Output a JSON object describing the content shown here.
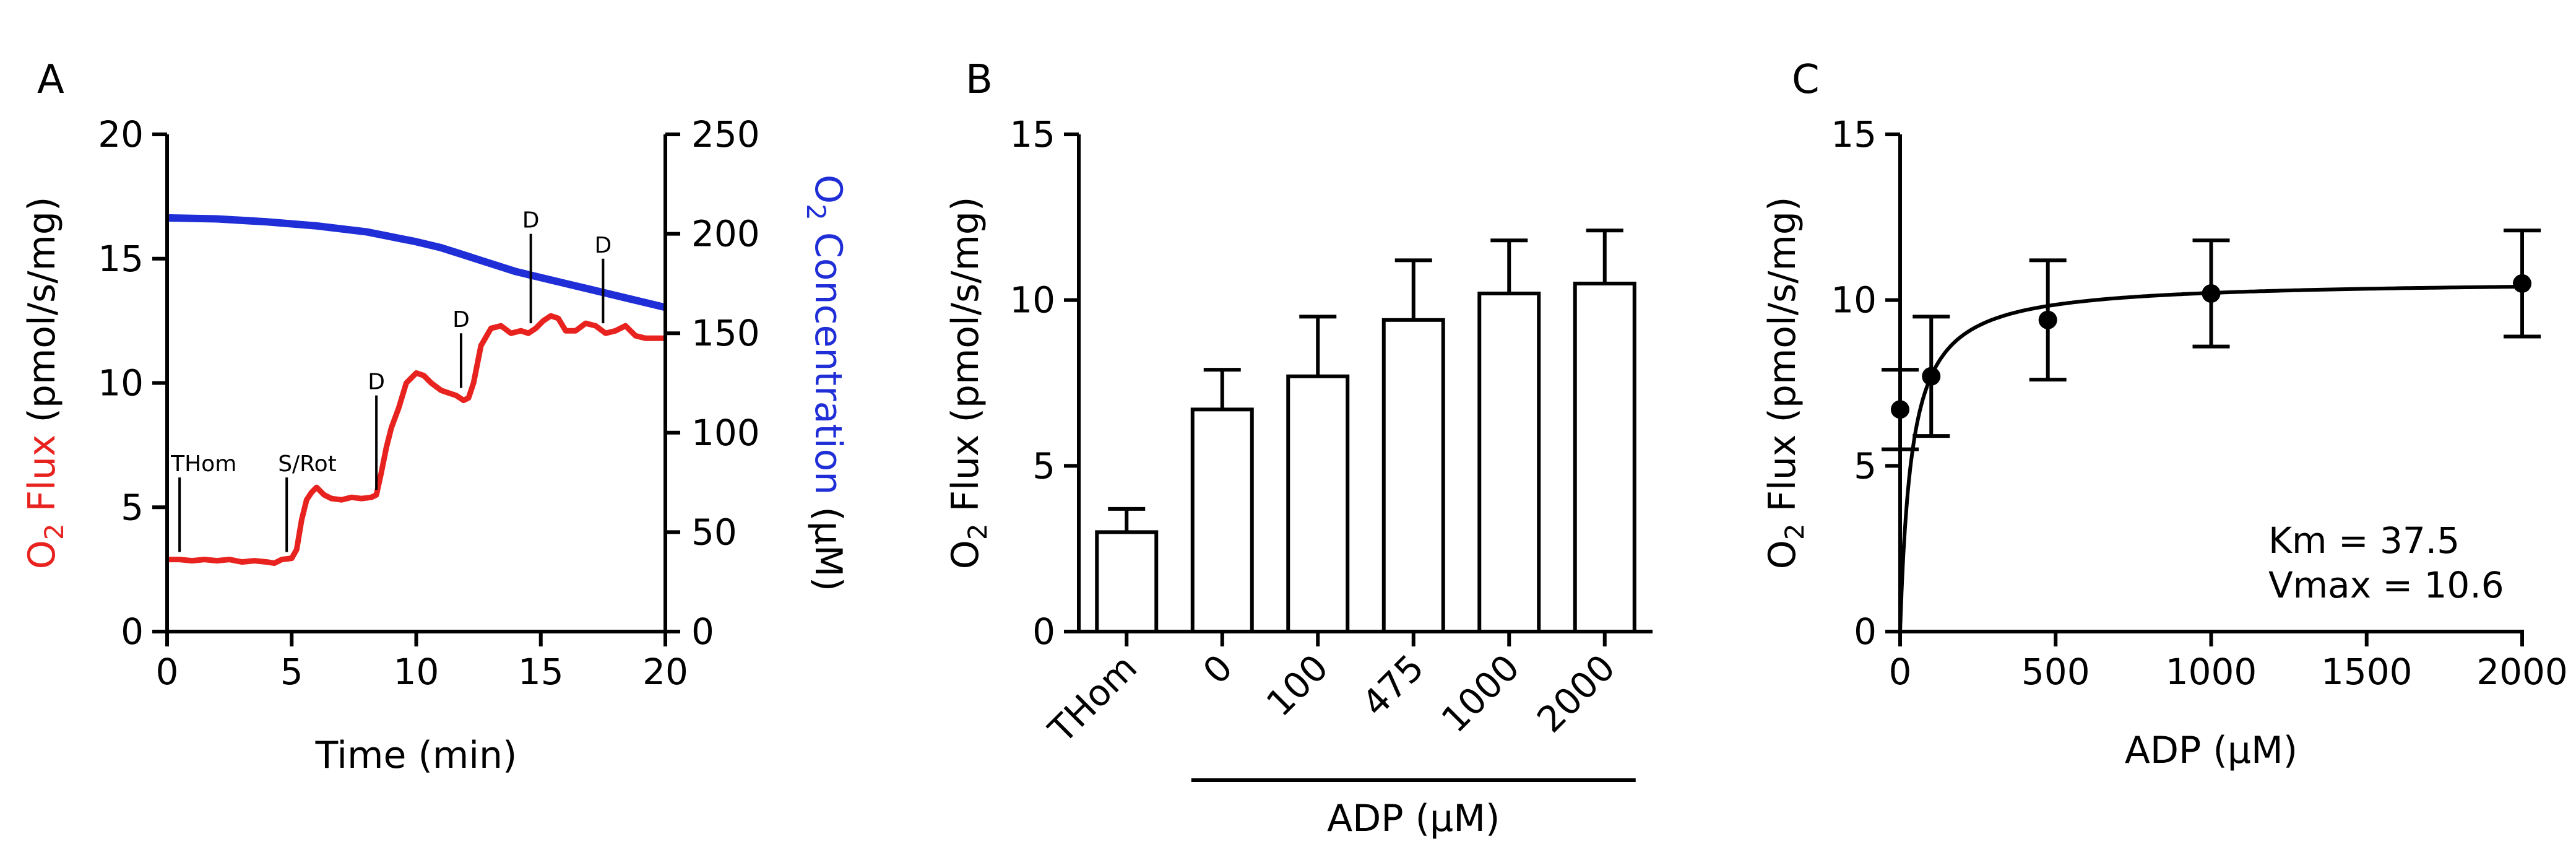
{
  "colors": {
    "flux": "#e8231f",
    "concentration": "#1f2ed6",
    "axis": "#000000"
  },
  "chart_data": [
    {
      "panel": "A",
      "type": "line",
      "xlabel": "Time (min)",
      "ylabel_left": {
        "base": "O",
        "sub": "2",
        "rest": " Flux",
        "unit": " (pmol/s/mg)"
      },
      "ylabel_right": {
        "base": "O",
        "sub": "2",
        "rest": " Concentration",
        "unit": " (µM)"
      },
      "xlim": [
        0,
        20
      ],
      "ylim_left": [
        0,
        20
      ],
      "ylim_right": [
        0,
        250
      ],
      "x_ticks": [
        "0",
        "5",
        "10",
        "15",
        "20"
      ],
      "y_ticks_left": [
        "0",
        "5",
        "10",
        "15",
        "20"
      ],
      "y_ticks_right": [
        "0",
        "50",
        "100",
        "150",
        "200",
        "250"
      ],
      "series": [
        {
          "axis": "left",
          "color": "#e8231f",
          "x": [
            0,
            0.5,
            1,
            1.5,
            2,
            2.5,
            3,
            3.5,
            4,
            4.3,
            4.6,
            5.0,
            5.2,
            5.4,
            5.6,
            5.8,
            6.0,
            6.3,
            6.6,
            7.0,
            7.4,
            7.8,
            8.2,
            8.4,
            8.6,
            8.8,
            9.0,
            9.3,
            9.6,
            10.0,
            10.3,
            10.6,
            11.0,
            11.3,
            11.6,
            11.9,
            12.1,
            12.3,
            12.6,
            13.0,
            13.4,
            13.8,
            14.2,
            14.5,
            14.8,
            15.1,
            15.4,
            15.7,
            16.0,
            16.4,
            16.8,
            17.2,
            17.6,
            18.0,
            18.4,
            18.8,
            19.2,
            19.6,
            20.0
          ],
          "y": [
            2.9,
            2.9,
            2.85,
            2.9,
            2.85,
            2.9,
            2.8,
            2.85,
            2.8,
            2.75,
            2.9,
            2.95,
            3.3,
            4.5,
            5.3,
            5.6,
            5.8,
            5.5,
            5.35,
            5.3,
            5.4,
            5.35,
            5.4,
            5.5,
            6.4,
            7.4,
            8.2,
            9.0,
            10.0,
            10.4,
            10.3,
            10.0,
            9.7,
            9.6,
            9.5,
            9.3,
            9.4,
            10.0,
            11.5,
            12.2,
            12.3,
            12.0,
            12.1,
            12.0,
            12.2,
            12.5,
            12.7,
            12.6,
            12.1,
            12.1,
            12.4,
            12.3,
            12.0,
            12.1,
            12.3,
            11.9,
            11.8,
            11.8,
            11.8
          ]
        },
        {
          "axis": "right",
          "color": "#1f2ed6",
          "x": [
            0,
            2,
            4,
            6,
            8,
            10,
            11,
            12,
            13,
            14,
            15,
            16,
            17,
            18,
            19,
            20
          ],
          "y": [
            208,
            207.5,
            206,
            204,
            201,
            196,
            193,
            189,
            185,
            181,
            178,
            175,
            172,
            169,
            166,
            163
          ]
        }
      ],
      "annotations": [
        {
          "label": "THom",
          "x": 0.5,
          "y_top": 6.2,
          "y_bottom": 3.2
        },
        {
          "label": "S/Rot",
          "x": 4.8,
          "y_top": 6.2,
          "y_bottom": 3.2
        },
        {
          "label": "D",
          "x": 8.4,
          "y_top": 9.5,
          "y_bottom": 5.7
        },
        {
          "label": "D",
          "x": 11.8,
          "y_top": 12.0,
          "y_bottom": 9.8
        },
        {
          "label": "D",
          "x": 14.6,
          "y_top": 16.0,
          "y_bottom": 12.4
        },
        {
          "label": "D",
          "x": 17.5,
          "y_top": 15.0,
          "y_bottom": 12.4
        }
      ]
    },
    {
      "panel": "B",
      "type": "bar",
      "ylabel": {
        "base": "O",
        "sub": "2",
        "rest": " Flux",
        "unit": " (pmol/s/mg)"
      },
      "xlabel": "ADP (µM)",
      "ylim": [
        0,
        15
      ],
      "y_ticks": [
        "0",
        "5",
        "10",
        "15"
      ],
      "categories": [
        "THom",
        "0",
        "100",
        "475",
        "1000",
        "2000"
      ],
      "values": [
        3.0,
        6.7,
        7.7,
        9.4,
        10.2,
        10.5
      ],
      "errors": [
        0.7,
        1.2,
        1.8,
        1.8,
        1.6,
        1.6
      ],
      "group_bracket": {
        "from": 1,
        "to": 5,
        "label": "ADP (µM)"
      }
    },
    {
      "panel": "C",
      "type": "scatter",
      "xlabel": "ADP (µM)",
      "ylabel": {
        "base": "O",
        "sub": "2",
        "rest": " Flux",
        "unit": " (pmol/s/mg)"
      },
      "xlim": [
        0,
        2000
      ],
      "ylim": [
        0,
        15
      ],
      "x_ticks": [
        "0",
        "500",
        "1000",
        "1500",
        "2000"
      ],
      "y_ticks": [
        "0",
        "5",
        "10",
        "15"
      ],
      "points": {
        "x": [
          0,
          100,
          475,
          1000,
          2000
        ],
        "y": [
          6.7,
          7.7,
          9.4,
          10.2,
          10.5
        ],
        "errors": [
          1.2,
          1.8,
          1.8,
          1.6,
          1.6
        ]
      },
      "fit": {
        "model": "michaelis-menten",
        "Km": 37.5,
        "Vmax": 10.6
      },
      "annotations": [
        "Km = 37.5",
        "Vmax = 10.6"
      ]
    }
  ]
}
